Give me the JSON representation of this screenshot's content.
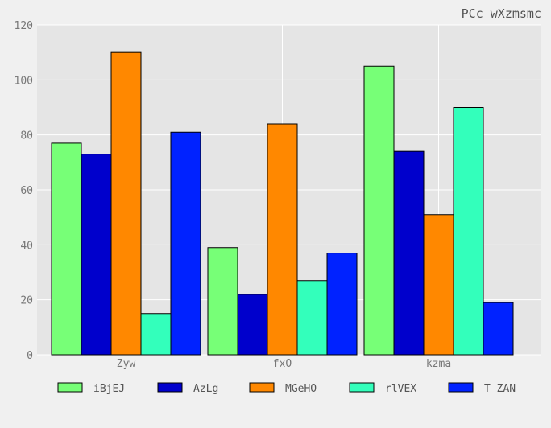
{
  "chart_data": {
    "type": "bar",
    "title": "PCc wXzmsmc",
    "xlabel": "",
    "ylabel": "",
    "categories": [
      "Zyw",
      "fxO",
      "kzma"
    ],
    "ylim": [
      0,
      120
    ],
    "yticks": [
      0,
      20,
      40,
      60,
      80,
      100,
      120
    ],
    "grid": true,
    "legend_position": "bottom",
    "series": [
      {
        "name": "iBjEJ",
        "color": "#77ff77",
        "values": [
          77,
          39,
          105
        ]
      },
      {
        "name": "AzLg",
        "color": "#0000cc",
        "values": [
          73,
          22,
          74
        ]
      },
      {
        "name": "MGeHO",
        "color": "#ff8800",
        "values": [
          110,
          84,
          51
        ]
      },
      {
        "name": "rlVEX",
        "color": "#33ffbb",
        "values": [
          15,
          27,
          90
        ]
      },
      {
        "name": "T ZAN",
        "color": "#0022ff",
        "values": [
          81,
          37,
          19
        ]
      }
    ]
  }
}
